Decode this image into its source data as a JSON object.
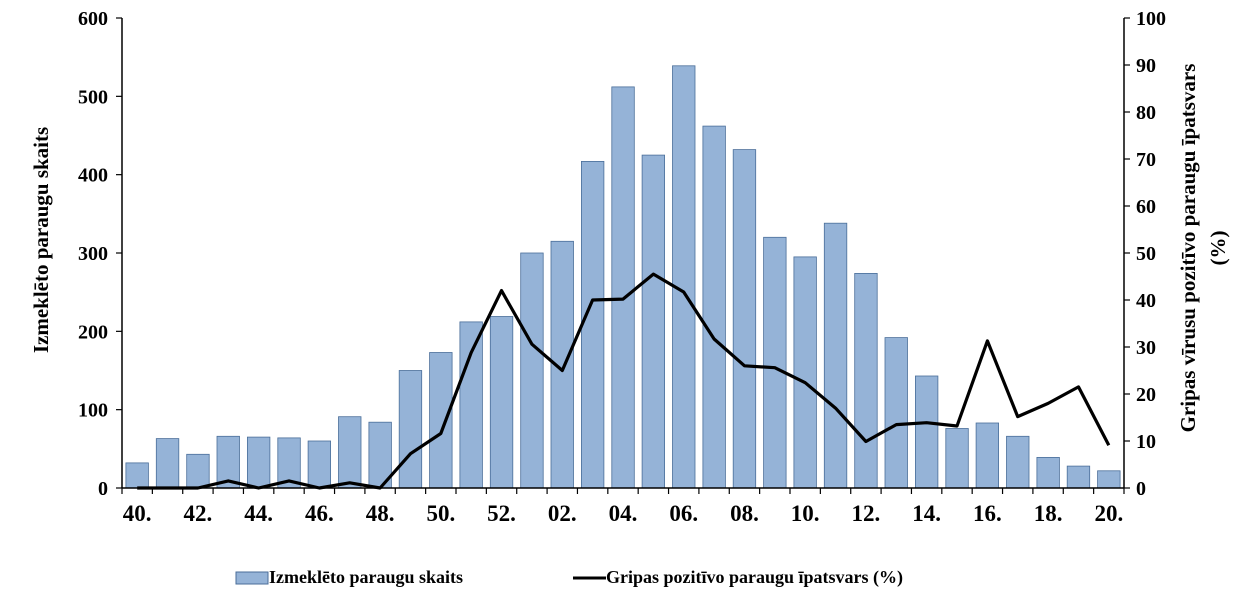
{
  "chart_data": {
    "type": "bar+line",
    "categories": [
      "40.",
      "41.",
      "42.",
      "43.",
      "44.",
      "45.",
      "46.",
      "47.",
      "48.",
      "49.",
      "50.",
      "51.",
      "52.",
      "01.",
      "02.",
      "03.",
      "04.",
      "05.",
      "06.",
      "07.",
      "08.",
      "09.",
      "10.",
      "11.",
      "12.",
      "13.",
      "14.",
      "15.",
      "16.",
      "17.",
      "18.",
      "19.",
      "20."
    ],
    "x_tick_labels": [
      "40.",
      "42.",
      "44.",
      "46.",
      "48.",
      "50.",
      "52.",
      "02.",
      "04.",
      "06.",
      "08.",
      "10.",
      "12.",
      "14.",
      "16.",
      "18.",
      "20."
    ],
    "series": [
      {
        "name": "Izmeklēto paraugu skaits",
        "type": "bar",
        "axis": "left",
        "color": "#95B3D7",
        "values": [
          32,
          63,
          43,
          66,
          65,
          64,
          60,
          91,
          84,
          150,
          173,
          212,
          219,
          300,
          315,
          417,
          512,
          425,
          539,
          462,
          432,
          320,
          295,
          338,
          274,
          192,
          143,
          76,
          83,
          66,
          39,
          28,
          22
        ]
      },
      {
        "name": "Gripas pozitīvo paraugu īpatsvars (%)",
        "type": "line",
        "axis": "right",
        "color": "#000000",
        "values": [
          0,
          0,
          0,
          1.5,
          0,
          1.5,
          0,
          1.1,
          0,
          7.3,
          11.6,
          28.8,
          42,
          30.6,
          25,
          40,
          40.2,
          45.5,
          41.7,
          31.7,
          26,
          25.6,
          22.4,
          17,
          9.9,
          13.5,
          13.9,
          13.2,
          31.3,
          15.2,
          18,
          21.5,
          9.1
        ]
      }
    ],
    "ylabel": "Izmeklēto paraugu skaits",
    "ylabel_right": "Gripas vīrusu pozitīvo paraugu īpatsvars (%)",
    "ylim": [
      0,
      600
    ],
    "ylim_right": [
      0,
      100
    ],
    "yticks": [
      "0",
      "100",
      "200",
      "300",
      "400",
      "500",
      "600"
    ],
    "yticks_right": [
      "0",
      "10",
      "20",
      "30",
      "40",
      "50",
      "60",
      "70",
      "80",
      "90",
      "100"
    ],
    "grid": false,
    "legend_position": "bottom"
  }
}
